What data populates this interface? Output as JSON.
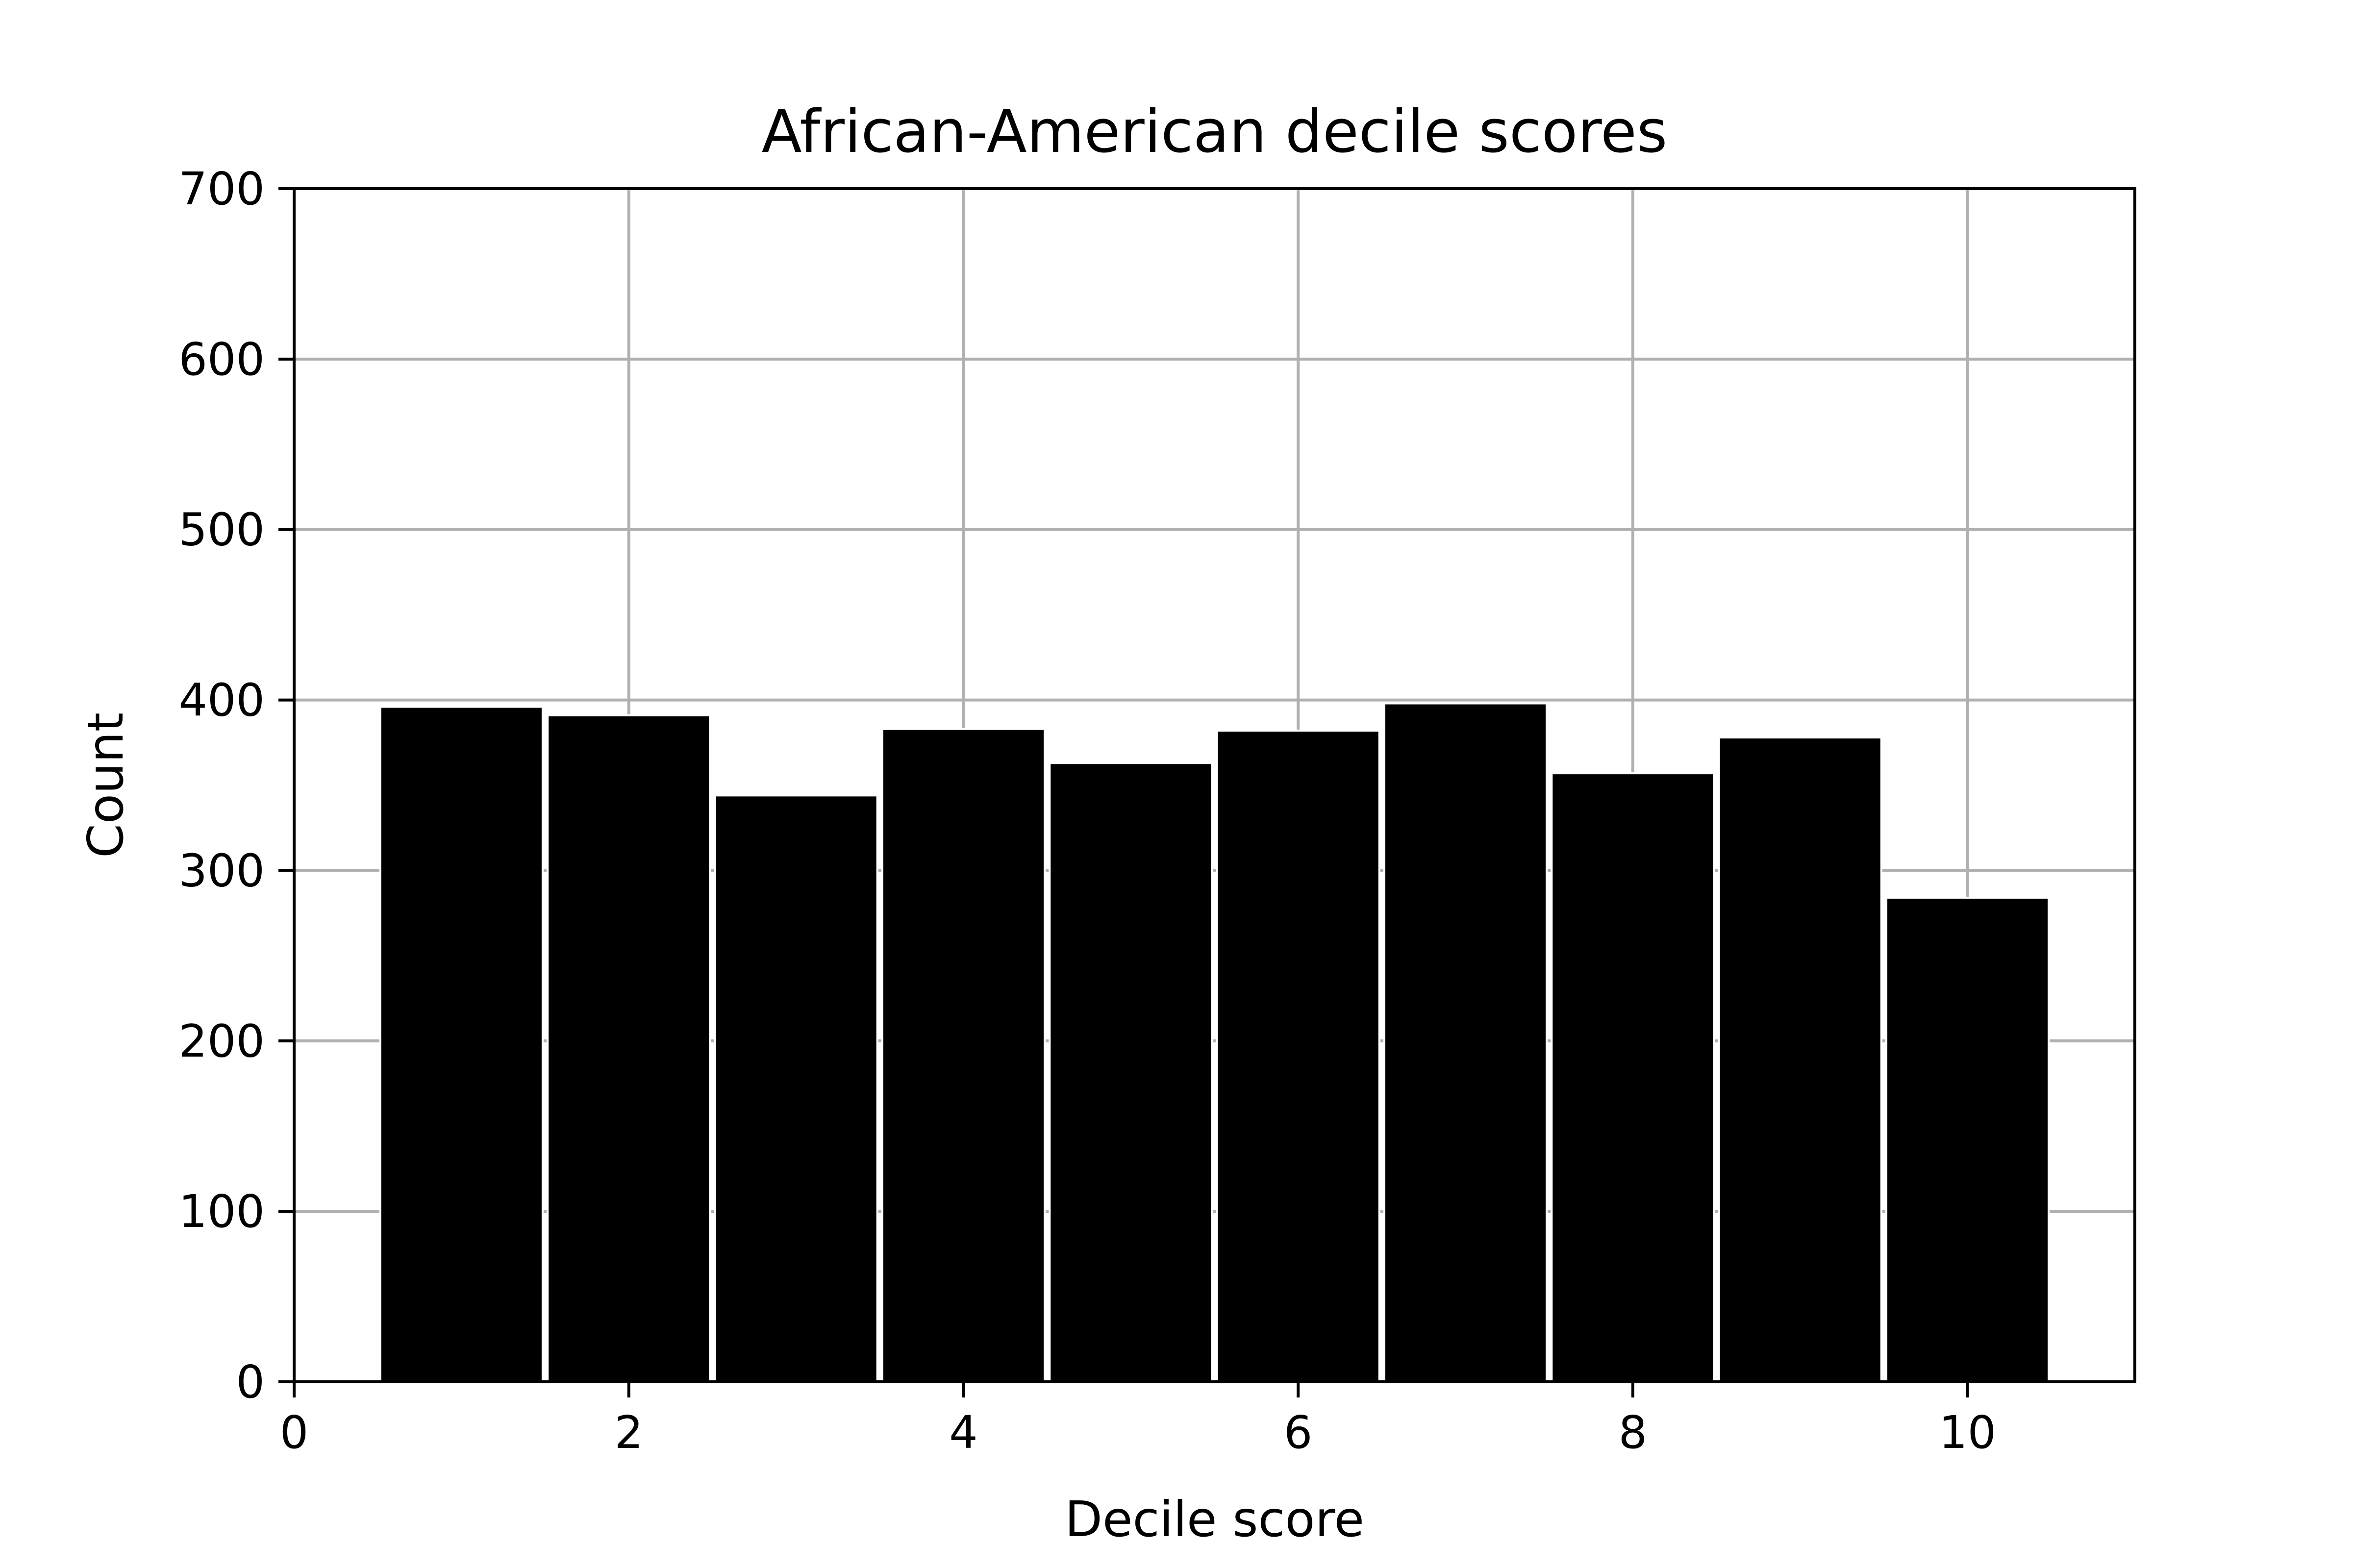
{
  "chart_data": {
    "type": "bar",
    "title": "African-American decile scores",
    "xlabel": "Decile score",
    "ylabel": "Count",
    "categories": [
      1,
      2,
      3,
      4,
      5,
      6,
      7,
      8,
      9,
      10
    ],
    "values": [
      396,
      391,
      344,
      383,
      363,
      382,
      398,
      357,
      378,
      284
    ],
    "bar_width": 0.97,
    "xlim": [
      0,
      11
    ],
    "ylim": [
      0,
      700
    ],
    "xticks": [
      0,
      2,
      4,
      6,
      8,
      10
    ],
    "yticks": [
      0,
      100,
      200,
      300,
      400,
      500,
      600,
      700
    ],
    "xtick_labels": [
      "0",
      "2",
      "4",
      "6",
      "8",
      "10"
    ],
    "ytick_labels": [
      "0",
      "100",
      "200",
      "300",
      "400",
      "500",
      "600",
      "700"
    ],
    "grid": true,
    "bar_color": "#000000",
    "bar_edge_color": "#ffffff",
    "grid_color": "#b0b0b0"
  }
}
